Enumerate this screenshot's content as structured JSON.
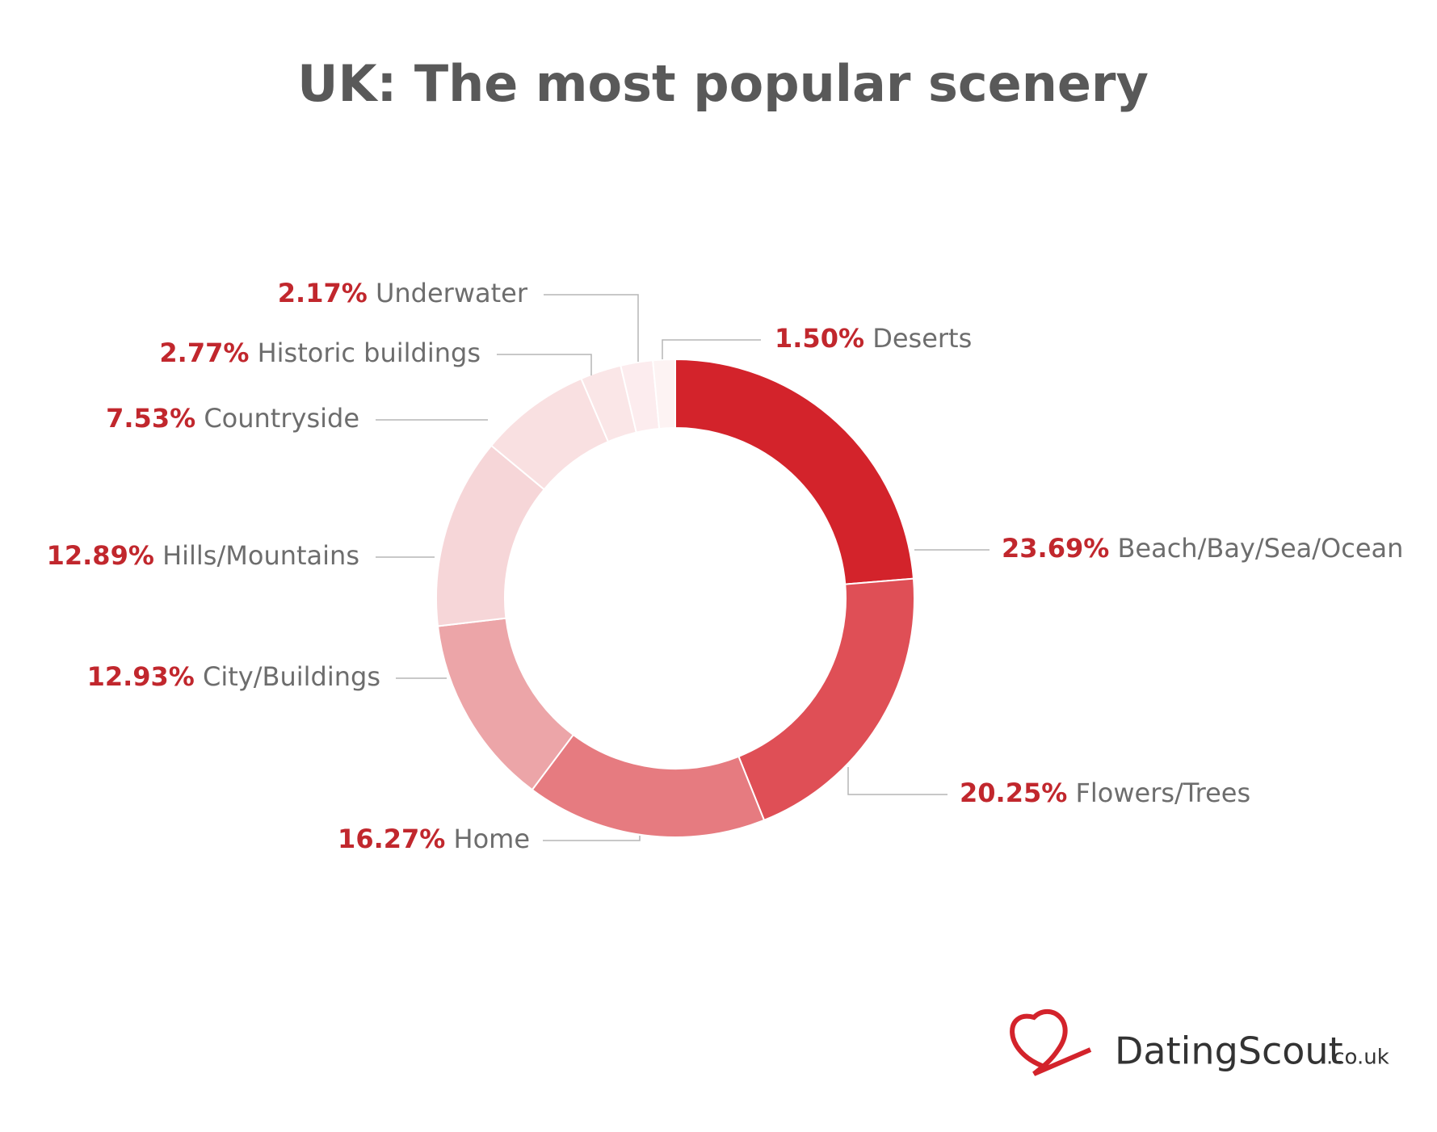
{
  "chart_data": {
    "type": "donut",
    "title": "UK: The most popular scenery",
    "categories": [
      "Beach/Bay/Sea/Ocean",
      "Flowers/Trees",
      "Home",
      "City/Buildings",
      "Hills/Mountains",
      "Countryside",
      "Historic buildings",
      "Underwater",
      "Deserts"
    ],
    "values": [
      23.69,
      20.25,
      16.27,
      12.93,
      12.89,
      7.53,
      2.77,
      2.17,
      1.5
    ],
    "value_labels": [
      "23.69%",
      "20.25%",
      "16.27%",
      "12.93%",
      "12.89%",
      "7.53%",
      "2.77%",
      "2.17%",
      "1.50%"
    ],
    "colors": [
      "#d3232b",
      "#df4f56",
      "#e67b80",
      "#eca5a8",
      "#f6d6d8",
      "#f9e0e1",
      "#fae6e7",
      "#fcecee",
      "#fdf3f3"
    ]
  },
  "logo": {
    "name": "DatingScout",
    "domain": ".co.uk"
  }
}
